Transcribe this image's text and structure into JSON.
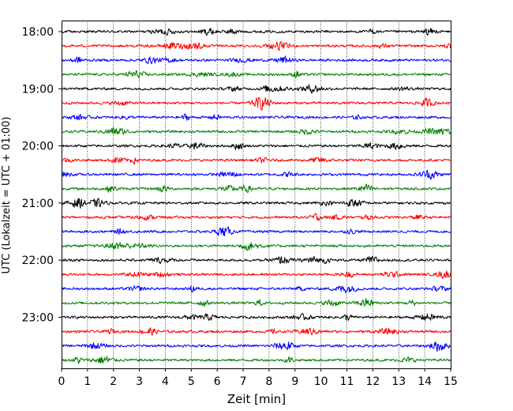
{
  "chart_data": {
    "type": "line",
    "title": "",
    "xlabel": "Zeit  [min]",
    "ylabel": "UTC (Lokalzeit = UTC + 01:00)",
    "xlim": [
      0,
      15
    ],
    "x_ticks": [
      0,
      1,
      2,
      3,
      4,
      5,
      6,
      7,
      8,
      9,
      10,
      11,
      12,
      13,
      14,
      15
    ],
    "x_tick_labels": [
      "0",
      "1",
      "2",
      "3",
      "4",
      "5",
      "6",
      "7",
      "8",
      "9",
      "10",
      "11",
      "12",
      "13",
      "14",
      "15"
    ],
    "y_tick_labels": [
      "18:00",
      "19:00",
      "20:00",
      "21:00",
      "22:00",
      "23:00"
    ],
    "grid": "vertical dotted at each minute",
    "trace_interval_minutes": 15,
    "traces_start_utc": "18:00",
    "color_cycle": [
      "#000000",
      "#ff0000",
      "#0000ff",
      "#007f00"
    ],
    "series": [
      {
        "start": "18:00",
        "color": "#000000"
      },
      {
        "start": "18:15",
        "color": "#ff0000"
      },
      {
        "start": "18:30",
        "color": "#0000ff"
      },
      {
        "start": "18:45",
        "color": "#007f00"
      },
      {
        "start": "19:00",
        "color": "#000000"
      },
      {
        "start": "19:15",
        "color": "#ff0000"
      },
      {
        "start": "19:30",
        "color": "#0000ff"
      },
      {
        "start": "19:45",
        "color": "#007f00"
      },
      {
        "start": "20:00",
        "color": "#000000"
      },
      {
        "start": "20:15",
        "color": "#ff0000"
      },
      {
        "start": "20:30",
        "color": "#0000ff"
      },
      {
        "start": "20:45",
        "color": "#007f00"
      },
      {
        "start": "21:00",
        "color": "#000000"
      },
      {
        "start": "21:15",
        "color": "#ff0000"
      },
      {
        "start": "21:30",
        "color": "#0000ff"
      },
      {
        "start": "21:45",
        "color": "#007f00"
      },
      {
        "start": "22:00",
        "color": "#000000"
      },
      {
        "start": "22:15",
        "color": "#ff0000"
      },
      {
        "start": "22:30",
        "color": "#0000ff"
      },
      {
        "start": "22:45",
        "color": "#007f00"
      },
      {
        "start": "23:00",
        "color": "#000000"
      },
      {
        "start": "23:15",
        "color": "#ff0000"
      },
      {
        "start": "23:30",
        "color": "#0000ff"
      },
      {
        "start": "23:45",
        "color": "#007f00"
      }
    ]
  }
}
